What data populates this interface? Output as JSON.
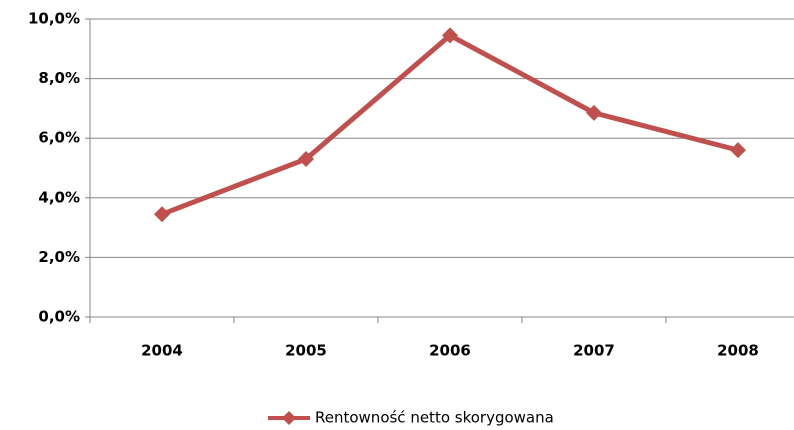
{
  "chart_data": {
    "type": "line",
    "categories": [
      "2004",
      "2005",
      "2006",
      "2007",
      "2008"
    ],
    "series": [
      {
        "name": "Rentowność netto skorygowana",
        "color": "#c0504d",
        "values": [
          3.45,
          5.3,
          9.45,
          6.85,
          5.6
        ]
      }
    ],
    "ylim": [
      0,
      10
    ],
    "yticks": [
      {
        "value": 0,
        "label": "0,0%"
      },
      {
        "value": 2,
        "label": "2,0%"
      },
      {
        "value": 4,
        "label": "4,0%"
      },
      {
        "value": 6,
        "label": "6,0%"
      },
      {
        "value": 8,
        "label": "8,0%"
      },
      {
        "value": 10,
        "label": "10,0%"
      }
    ],
    "grid": true,
    "legend": "bottom"
  }
}
